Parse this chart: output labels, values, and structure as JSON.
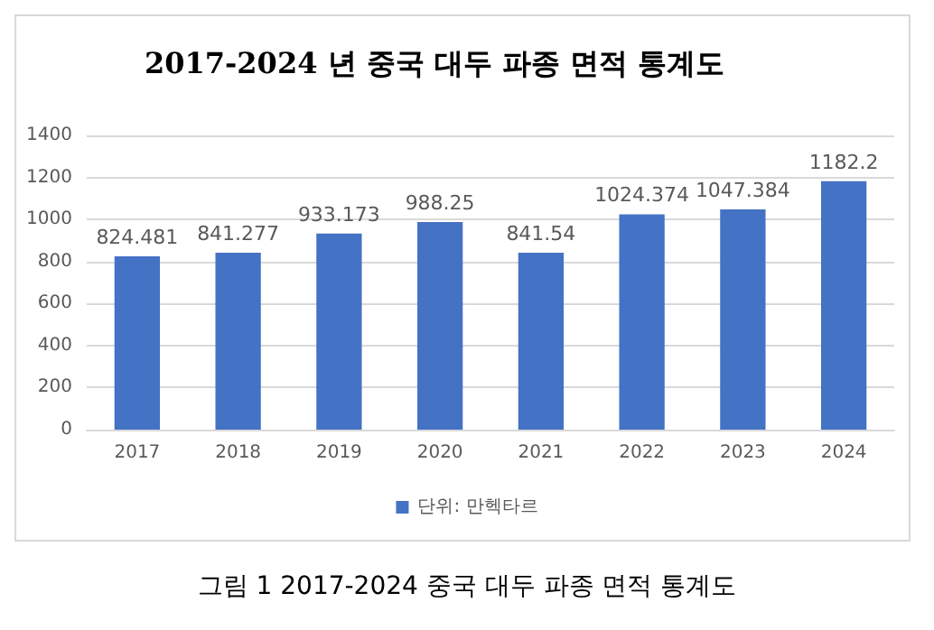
{
  "chart_data": {
    "type": "bar",
    "title": "2017-2024 년 중국 대두 파종 면적 통계도",
    "categories": [
      "2017",
      "2018",
      "2019",
      "2020",
      "2021",
      "2022",
      "2023",
      "2024"
    ],
    "series": [
      {
        "name": "단위: 만헥타르",
        "color": "#4472c4",
        "values": [
          824.481,
          841.277,
          933.173,
          988.25,
          841.54,
          1024.374,
          1047.384,
          1182.2
        ]
      }
    ],
    "ylim": [
      0,
      1400
    ],
    "yticks": [
      0,
      200,
      400,
      600,
      800,
      1000,
      1200,
      1400
    ],
    "grid": "y",
    "legend": "bottom",
    "data_labels": true,
    "annotations": [
      "그림 1 2017-2024 중국 대두 파종 면적 통계도"
    ]
  }
}
